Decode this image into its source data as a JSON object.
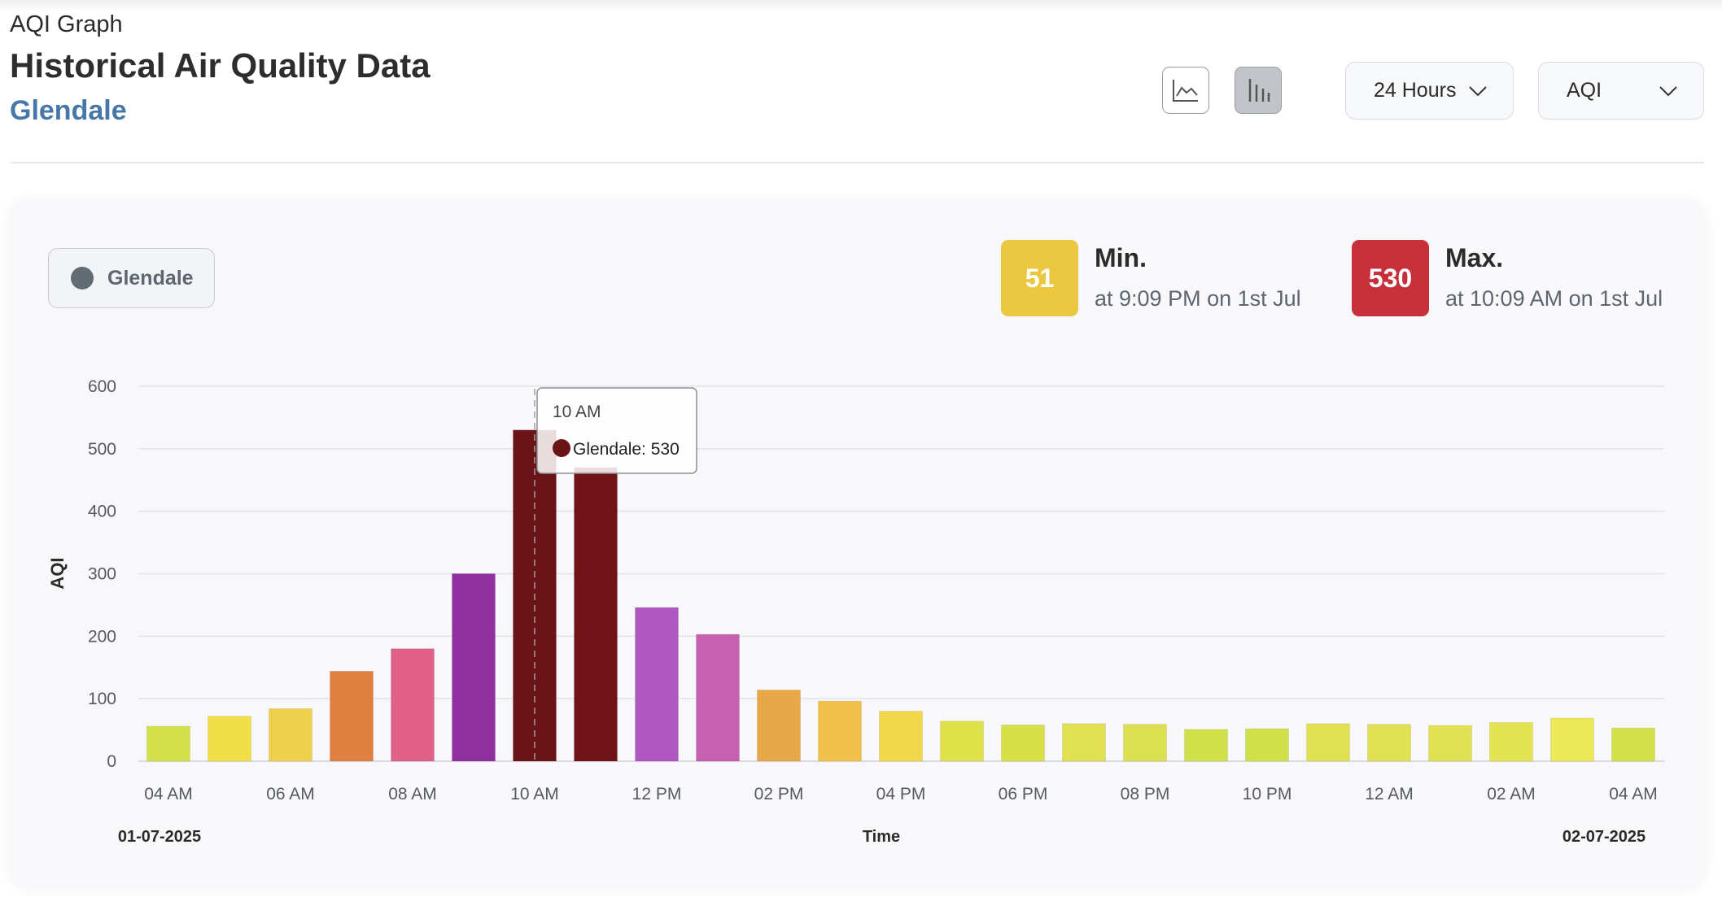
{
  "header": {
    "kicker": "AQI Graph",
    "title": "Historical Air Quality Data",
    "location": "Glendale"
  },
  "controls": {
    "line_view_icon": "line-chart-icon",
    "bar_view_icon": "bar-chart-icon",
    "range_label": "24 Hours",
    "metric_label": "AQI",
    "active_view": "bar"
  },
  "legend": {
    "label": "Glendale",
    "dot_color": "#636b73"
  },
  "stats": {
    "min": {
      "value": "51",
      "title": "Min.",
      "detail": "at 9:09 PM on 1st Jul",
      "color": "#ebc840"
    },
    "max": {
      "value": "530",
      "title": "Max.",
      "detail": "at 10:09 AM on 1st Jul",
      "color": "#c7303a"
    }
  },
  "tooltip": {
    "time": "10 AM",
    "text": "Glendale: 530",
    "dot_color": "#6b1417"
  },
  "chart_data": {
    "type": "bar",
    "ylabel": "AQI",
    "xlabel": "Time",
    "ylim": [
      0,
      600
    ],
    "yticks": [
      0,
      100,
      200,
      300,
      400,
      500,
      600
    ],
    "start_date": "01-07-2025",
    "end_date": "02-07-2025",
    "x_tick_labels": [
      "04 AM",
      "06 AM",
      "08 AM",
      "10 AM",
      "12 PM",
      "02 PM",
      "04 PM",
      "06 PM",
      "08 PM",
      "10 PM",
      "12 AM",
      "02 AM",
      "04 AM"
    ],
    "categories": [
      "04 AM",
      "05 AM",
      "06 AM",
      "07 AM",
      "08 AM",
      "09 AM",
      "10 AM",
      "11 AM",
      "12 PM",
      "01 PM",
      "02 PM",
      "03 PM",
      "04 PM",
      "05 PM",
      "06 PM",
      "07 PM",
      "08 PM",
      "09 PM",
      "10 PM",
      "11 PM",
      "12 AM",
      "01 AM",
      "02 AM",
      "03 AM",
      "04 AM"
    ],
    "values": [
      56,
      72,
      84,
      144,
      180,
      300,
      530,
      470,
      246,
      203,
      114,
      96,
      80,
      64,
      58,
      60,
      59,
      51,
      52,
      60,
      59,
      57,
      62,
      69,
      53
    ],
    "bar_colors": [
      "#d4e04a",
      "#f0e048",
      "#efd04a",
      "#e08040",
      "#e06088",
      "#9030a0",
      "#6b1417",
      "#701418",
      "#b058c0",
      "#c860b0",
      "#e8a848",
      "#f0c048",
      "#f0d84a",
      "#e0e048",
      "#d8e048",
      "#e0e050",
      "#dce050",
      "#d0e048",
      "#d0e048",
      "#e0e050",
      "#e0e050",
      "#e0e050",
      "#e4e450",
      "#ece858",
      "#d4e048"
    ],
    "grid": true,
    "tooltip_index": 6
  }
}
